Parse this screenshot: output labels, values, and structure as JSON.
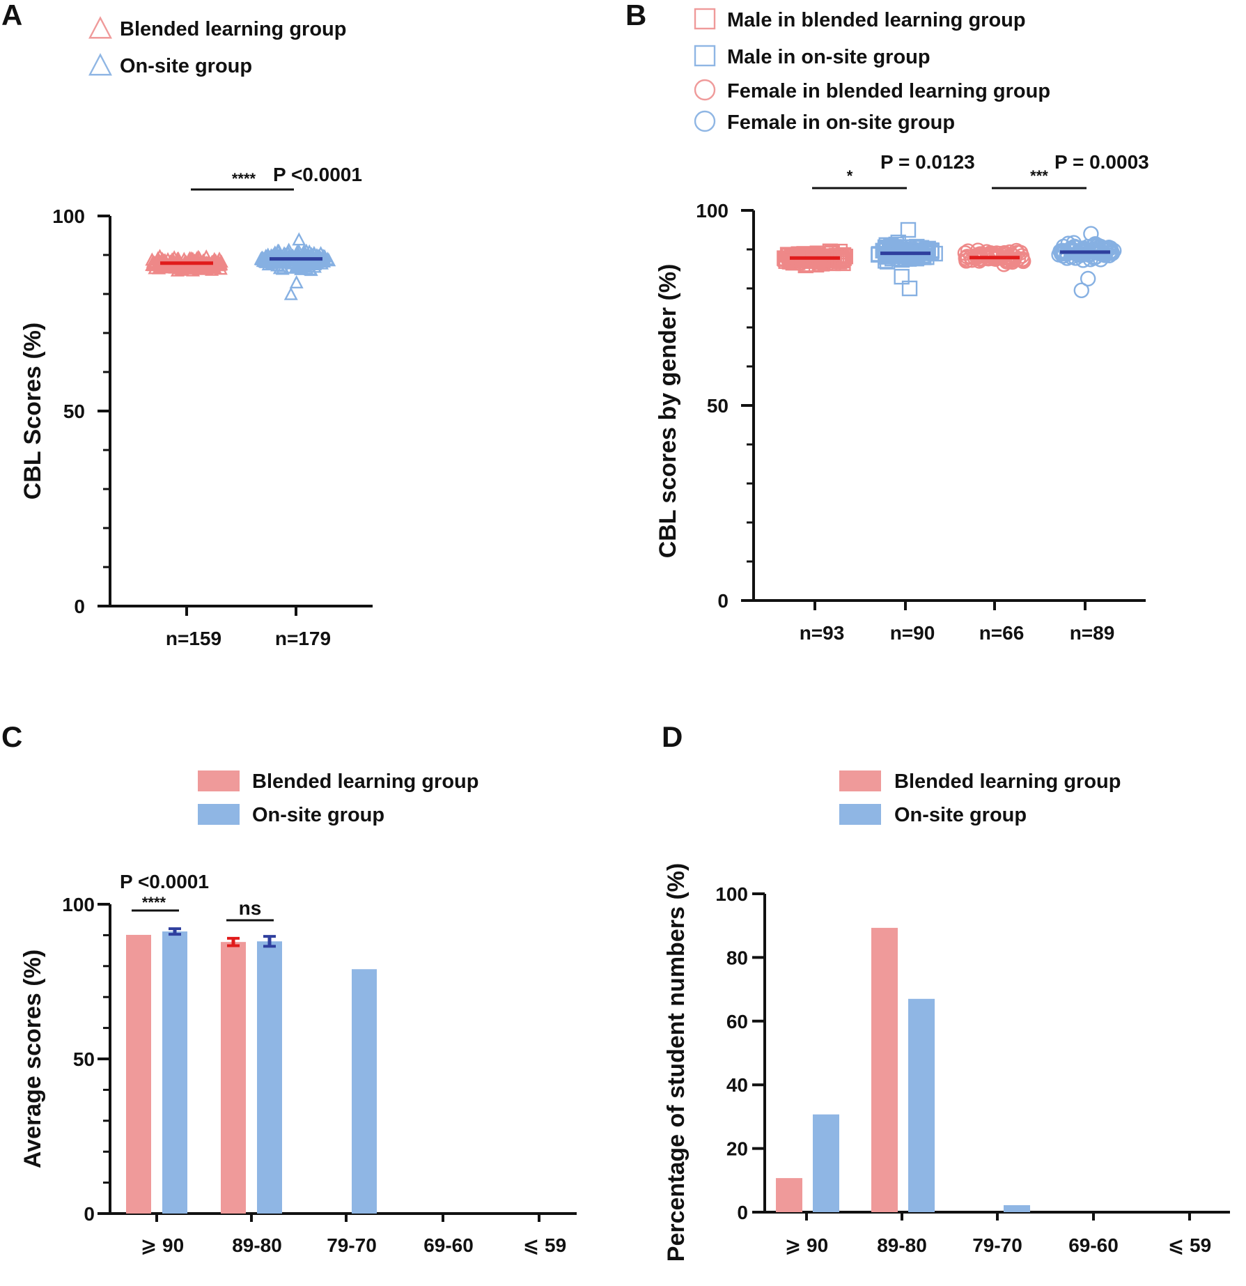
{
  "colors": {
    "blended": "#ef9a9a",
    "onsite": "#8fb6e4",
    "blended_marker": "#ee8888",
    "onsite_marker": "#86b0e2",
    "blended_error": "#e01b1b",
    "onsite_error": "#2f3f9e",
    "axis": "#111111"
  },
  "chart_data": [
    {
      "panel": "A",
      "type": "scatter",
      "title": "",
      "ylabel": "CBL Scores (%)",
      "xlabel": "",
      "ylim": [
        0,
        100
      ],
      "yticks": [
        0,
        50,
        100
      ],
      "categories": [
        "n=159",
        "n=179"
      ],
      "legend": [
        {
          "label": "Blended learning group",
          "marker": "triangle",
          "color": "blended"
        },
        {
          "label": "On-site group",
          "marker": "triangle",
          "color": "onsite"
        }
      ],
      "series": [
        {
          "name": "Blended learning group",
          "category": "n=159",
          "n": 159,
          "mean": 87.9,
          "min": 85.1,
          "max": 89.8,
          "marker": "triangle",
          "color": "blended"
        },
        {
          "name": "On-site group",
          "category": "n=179",
          "n": 179,
          "mean": 89.0,
          "min": 80.0,
          "max": 94.0,
          "marker": "triangle",
          "color": "onsite"
        }
      ],
      "significance": [
        {
          "from": 0,
          "to": 1,
          "stars": "****",
          "p_label": "P <0.0001"
        }
      ]
    },
    {
      "panel": "B",
      "type": "scatter",
      "title": "",
      "ylabel": "CBL scores by gender (%)",
      "xlabel": "",
      "ylim": [
        0,
        100
      ],
      "yticks": [
        0,
        50,
        100
      ],
      "categories": [
        "n=93",
        "n=90",
        "n=66",
        "n=89"
      ],
      "legend": [
        {
          "label": "Male in blended learning group",
          "marker": "square",
          "color": "blended"
        },
        {
          "label": "Male in on-site group",
          "marker": "square",
          "color": "onsite"
        },
        {
          "label": "Female in blended learning group",
          "marker": "circle",
          "color": "blended"
        },
        {
          "label": "Female in on-site group",
          "marker": "circle",
          "color": "onsite"
        }
      ],
      "series": [
        {
          "name": "Male in blended learning group",
          "category": "n=93",
          "n": 93,
          "mean": 87.8,
          "min": 85.0,
          "max": 90.0,
          "marker": "square",
          "color": "blended"
        },
        {
          "name": "Male in on-site group",
          "category": "n=90",
          "n": 90,
          "mean": 89.0,
          "min": 80.0,
          "max": 95.0,
          "marker": "square",
          "color": "onsite"
        },
        {
          "name": "Female in blended learning group",
          "category": "n=66",
          "n": 66,
          "mean": 87.9,
          "min": 85.5,
          "max": 90.0,
          "marker": "circle",
          "color": "blended"
        },
        {
          "name": "Female in on-site group",
          "category": "n=89",
          "n": 89,
          "mean": 89.3,
          "min": 79.5,
          "max": 94.0,
          "marker": "circle",
          "color": "onsite"
        }
      ],
      "significance": [
        {
          "from": 0,
          "to": 1,
          "stars": "*",
          "p_label": "P = 0.0123"
        },
        {
          "from": 2,
          "to": 3,
          "stars": "***",
          "p_label": "P = 0.0003"
        }
      ]
    },
    {
      "panel": "C",
      "type": "bar",
      "title": "",
      "ylabel": "Average scores (%)",
      "xlabel": "",
      "ylim": [
        0,
        100
      ],
      "yticks": [
        0,
        50,
        100
      ],
      "categories": [
        "⩾ 90",
        "89-80",
        "79-70",
        "69-60",
        "⩽ 59"
      ],
      "legend": [
        {
          "label": "Blended learning group",
          "color": "blended"
        },
        {
          "label": "On-site group",
          "color": "onsite"
        }
      ],
      "series": [
        {
          "name": "Blended learning group",
          "color": "blended",
          "error_color": "blended_error",
          "values": [
            90.1,
            87.8,
            null,
            null,
            null
          ],
          "errors": [
            0.0,
            1.2,
            null,
            null,
            null
          ]
        },
        {
          "name": "On-site group",
          "color": "onsite",
          "error_color": "onsite_error",
          "values": [
            91.2,
            88.0,
            79.0,
            null,
            null
          ],
          "errors": [
            0.9,
            1.6,
            null,
            null,
            null
          ]
        }
      ],
      "significance": [
        {
          "category": 0,
          "stars": "****",
          "p_label": "P <0.0001"
        },
        {
          "category": 1,
          "stars": "ns",
          "p_label": ""
        }
      ]
    },
    {
      "panel": "D",
      "type": "bar",
      "title": "",
      "ylabel": "Percentage of student numbers (%)",
      "xlabel": "",
      "ylim": [
        0,
        100
      ],
      "yticks": [
        0,
        20,
        40,
        60,
        80,
        100
      ],
      "categories": [
        "⩾ 90",
        "89-80",
        "79-70",
        "69-60",
        "⩽ 59"
      ],
      "legend": [
        {
          "label": "Blended learning group",
          "color": "blended"
        },
        {
          "label": "On-site group",
          "color": "onsite"
        }
      ],
      "series": [
        {
          "name": "Blended learning group",
          "color": "blended",
          "values": [
            10.7,
            89.3,
            0,
            0,
            0
          ]
        },
        {
          "name": "On-site group",
          "color": "onsite",
          "values": [
            30.7,
            67.0,
            2.2,
            0,
            0
          ]
        }
      ]
    }
  ]
}
